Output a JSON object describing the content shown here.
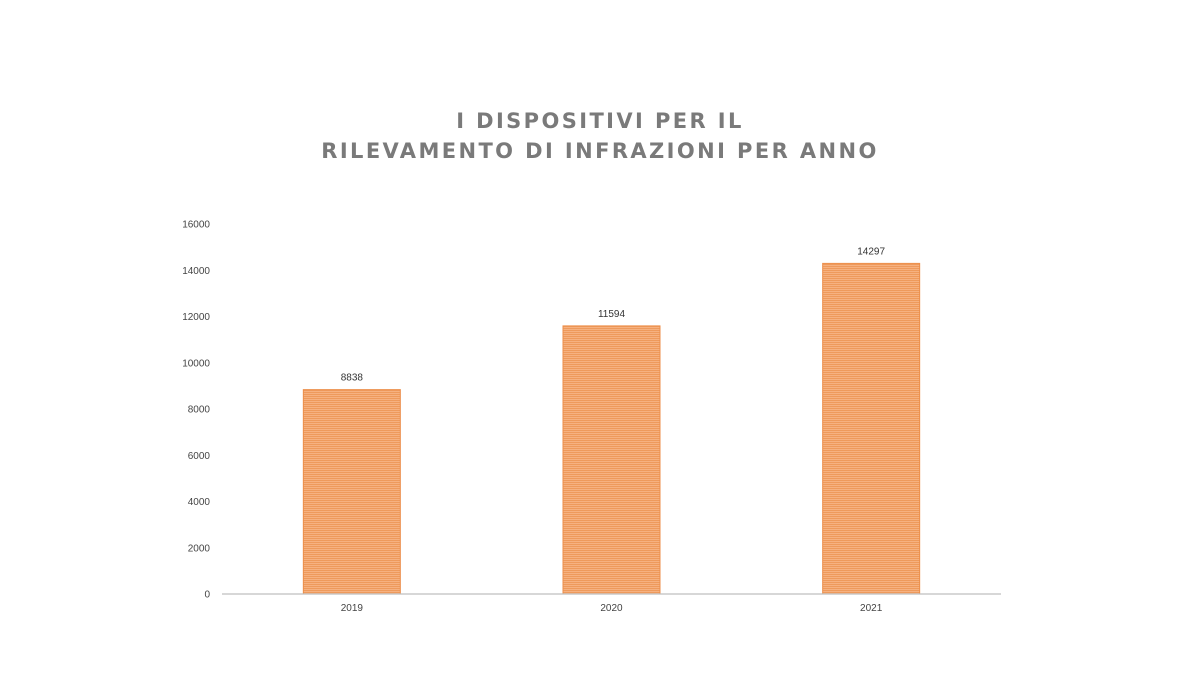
{
  "chart_data": {
    "type": "bar",
    "title_line1": "I DISPOSITIVI PER IL",
    "title_line2": "RILEVAMENTO DI INFRAZIONI PER ANNO",
    "xlabel": "",
    "ylabel": "",
    "categories": [
      "2019",
      "2020",
      "2021"
    ],
    "values": [
      8838,
      11594,
      14297
    ],
    "data_labels": [
      "8838",
      "11594",
      "14297"
    ],
    "ylim": [
      0,
      16000
    ],
    "yticks": [
      0,
      2000,
      4000,
      6000,
      8000,
      10000,
      12000,
      14000,
      16000
    ],
    "ytick_labels": [
      "0",
      "2000",
      "4000",
      "6000",
      "8000",
      "10000",
      "12000",
      "14000",
      "16000"
    ],
    "grid": false,
    "legend": "none",
    "colors": {
      "bar": "#f4a46a",
      "bar_stripe": "#ec8e4a",
      "axis": "#bfbfbf",
      "title": "#7a7a7a"
    }
  }
}
